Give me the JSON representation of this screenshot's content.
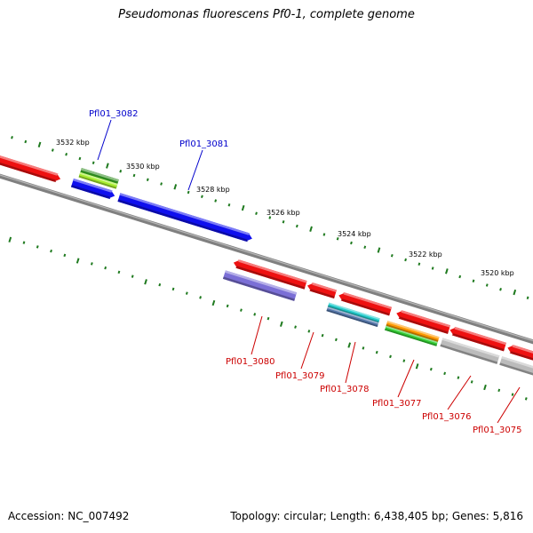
{
  "title": "Pseudomonas fluorescens Pf0-1, complete genome",
  "footer": {
    "accession": "Accession: NC_007492",
    "summary": "Topology: circular; Length: 6,438,405 bp; Genes: 5,816"
  },
  "scale": {
    "labels": [
      "3532 kbp",
      "3530 kbp",
      "3528 kbp",
      "3526 kbp",
      "3524 kbp",
      "3522 kbp",
      "3520 kbp"
    ]
  },
  "genes": {
    "forward": [
      "Pfl01_3082",
      "Pfl01_3081"
    ],
    "reverse": [
      "Pfl01_3080",
      "Pfl01_3079",
      "Pfl01_3078",
      "Pfl01_3077",
      "Pfl01_3076",
      "Pfl01_3075"
    ]
  },
  "colors": {
    "backbone": "#808080",
    "red": "#ee1111",
    "blue": "#1010ee",
    "dark_green": "#2d8a1e",
    "light_green": "#a8ee30",
    "lavender": "#7b6fd6",
    "cyan": "#22cccc",
    "steel_blue": "#5577aa",
    "orange": "#ff9900",
    "green": "#33cc33",
    "grey": "#bbbbbb",
    "tick_green": "#1f7a1f",
    "forward_label": "#0000cc",
    "reverse_label": "#cc0000"
  }
}
